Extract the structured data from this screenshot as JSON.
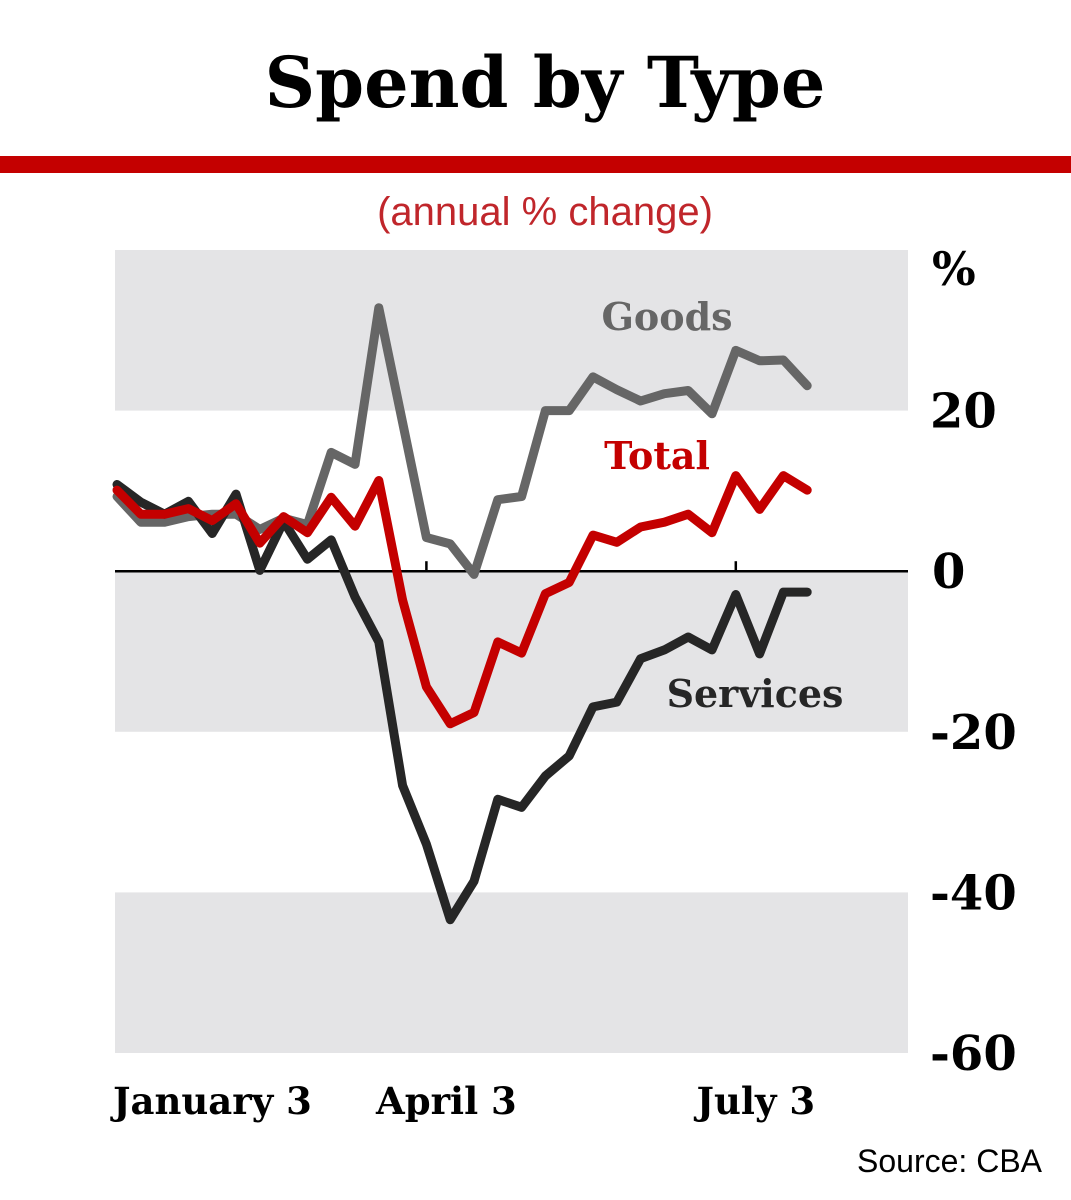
{
  "chart_data": {
    "type": "line",
    "title": "Spend by Type",
    "subtitle": "(annual % change)",
    "ylabel": "%",
    "ylim": [
      -60,
      40
    ],
    "yticks": [
      20,
      0,
      -20,
      -40,
      -60
    ],
    "ytick_labels": [
      "20",
      "0",
      "-20",
      "-40",
      "-60"
    ],
    "x_unit": "week",
    "x_points": 30,
    "xtick_labels": [
      {
        "label": "January 3",
        "index": 0
      },
      {
        "label": "April 3",
        "index": 13
      },
      {
        "label": "July 3",
        "index": 26
      }
    ],
    "grid": "alternating horizontal bands",
    "series": [
      {
        "name": "Goods",
        "color": "#666666",
        "values": [
          9.3,
          6.1,
          6.1,
          6.8,
          7.1,
          7.1,
          5.2,
          6.6,
          5.8,
          14.8,
          13.3,
          32.8,
          18.5,
          4.2,
          3.4,
          -0.4,
          8.9,
          9.3,
          20.0,
          20.0,
          24.2,
          22.6,
          21.2,
          22.1,
          22.5,
          19.6,
          27.5,
          26.2,
          26.3,
          23.1
        ]
      },
      {
        "name": "Total",
        "color": "#c40000",
        "values": [
          10.1,
          7.1,
          7.1,
          7.8,
          6.3,
          8.4,
          3.5,
          6.8,
          4.8,
          9.2,
          5.6,
          11.3,
          -3.6,
          -14.4,
          -19.0,
          -17.6,
          -8.8,
          -10.2,
          -2.8,
          -1.4,
          4.5,
          3.6,
          5.5,
          6.1,
          7.1,
          4.8,
          11.9,
          7.7,
          11.9,
          10.1
        ]
      },
      {
        "name": "Services",
        "color": "#262626",
        "values": [
          10.8,
          8.6,
          7.1,
          8.7,
          4.7,
          9.6,
          0.1,
          6.2,
          1.5,
          3.9,
          -3.2,
          -8.8,
          -26.7,
          -34.0,
          -43.4,
          -38.6,
          -28.4,
          -29.4,
          -25.5,
          -23.0,
          -16.9,
          -16.3,
          -10.9,
          -9.8,
          -8.2,
          -9.8,
          -2.9,
          -10.3,
          -2.6,
          -2.6
        ]
      }
    ],
    "source": "Source: CBA"
  },
  "colors": {
    "accent": "#c40000",
    "band": "#e4e4e6"
  }
}
